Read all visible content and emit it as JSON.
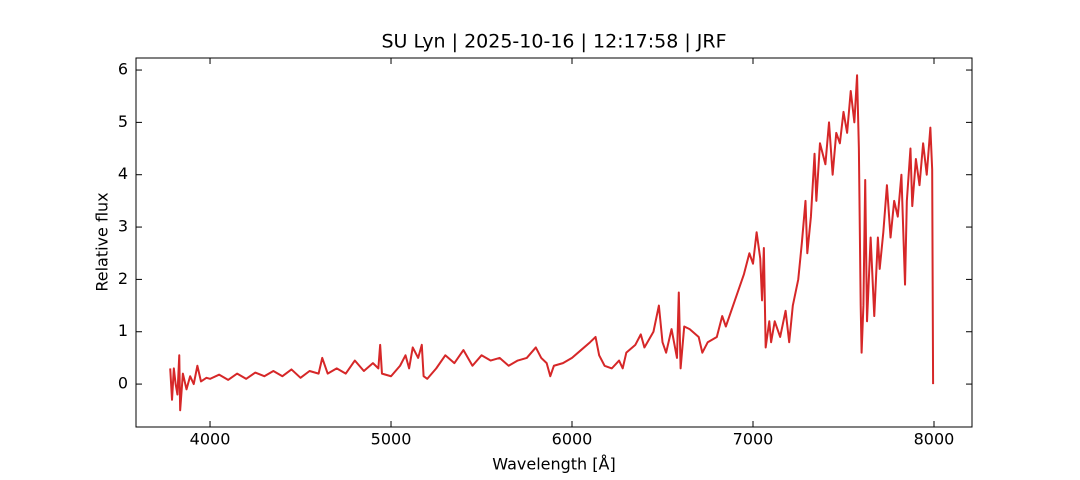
{
  "chart_data": {
    "type": "line",
    "title": "SU Lyn | 2025-10-16 | 12:17:58 | JRF",
    "x_label": "Wavelength [Å]",
    "y_label": "Relative flux",
    "xlim": [
      3591,
      8210
    ],
    "ylim": [
      -0.82,
      6.23
    ],
    "xticks": [
      4000,
      5000,
      6000,
      7000,
      8000
    ],
    "yticks": [
      0,
      1,
      2,
      3,
      4,
      5,
      6
    ],
    "grid": false,
    "series": [
      {
        "name": "SU Lyn",
        "color": "#d62728",
        "x": [
          3780,
          3790,
          3800,
          3810,
          3820,
          3830,
          3835,
          3850,
          3870,
          3890,
          3910,
          3930,
          3950,
          3980,
          4000,
          4050,
          4100,
          4150,
          4200,
          4250,
          4300,
          4350,
          4400,
          4450,
          4500,
          4550,
          4600,
          4620,
          4650,
          4700,
          4750,
          4800,
          4850,
          4900,
          4930,
          4940,
          4950,
          5000,
          5050,
          5080,
          5100,
          5120,
          5150,
          5170,
          5180,
          5200,
          5250,
          5300,
          5350,
          5400,
          5450,
          5500,
          5550,
          5600,
          5650,
          5700,
          5750,
          5800,
          5830,
          5860,
          5880,
          5900,
          5950,
          6000,
          6050,
          6100,
          6130,
          6150,
          6180,
          6220,
          6260,
          6280,
          6300,
          6350,
          6380,
          6400,
          6450,
          6480,
          6500,
          6520,
          6550,
          6580,
          6590,
          6600,
          6620,
          6650,
          6700,
          6720,
          6750,
          6800,
          6830,
          6850,
          6900,
          6950,
          6980,
          7000,
          7020,
          7040,
          7050,
          7060,
          7070,
          7090,
          7100,
          7120,
          7150,
          7180,
          7200,
          7220,
          7250,
          7270,
          7290,
          7300,
          7320,
          7340,
          7350,
          7370,
          7400,
          7420,
          7440,
          7460,
          7480,
          7500,
          7520,
          7540,
          7560,
          7575,
          7585,
          7595,
          7600,
          7610,
          7620,
          7630,
          7650,
          7670,
          7690,
          7700,
          7720,
          7740,
          7760,
          7780,
          7800,
          7820,
          7840,
          7850,
          7870,
          7880,
          7900,
          7920,
          7940,
          7960,
          7980,
          7990,
          7995
        ],
        "values": [
          0.3,
          -0.3,
          0.3,
          0.0,
          -0.2,
          0.55,
          -0.5,
          0.2,
          -0.1,
          0.15,
          0.0,
          0.35,
          0.05,
          0.12,
          0.1,
          0.18,
          0.08,
          0.2,
          0.1,
          0.22,
          0.15,
          0.25,
          0.15,
          0.28,
          0.12,
          0.25,
          0.2,
          0.5,
          0.2,
          0.3,
          0.2,
          0.45,
          0.25,
          0.4,
          0.3,
          0.75,
          0.2,
          0.15,
          0.35,
          0.55,
          0.3,
          0.7,
          0.5,
          0.75,
          0.15,
          0.1,
          0.3,
          0.55,
          0.4,
          0.65,
          0.35,
          0.55,
          0.45,
          0.5,
          0.35,
          0.45,
          0.5,
          0.7,
          0.5,
          0.4,
          0.15,
          0.35,
          0.4,
          0.5,
          0.65,
          0.8,
          0.9,
          0.55,
          0.35,
          0.3,
          0.45,
          0.3,
          0.6,
          0.75,
          0.95,
          0.7,
          1.0,
          1.5,
          0.8,
          0.6,
          1.05,
          0.5,
          1.75,
          0.3,
          1.1,
          1.05,
          0.9,
          0.6,
          0.8,
          0.9,
          1.3,
          1.1,
          1.6,
          2.1,
          2.5,
          2.3,
          2.9,
          2.4,
          1.6,
          2.6,
          0.7,
          1.2,
          0.8,
          1.2,
          0.9,
          1.4,
          0.8,
          1.5,
          2.0,
          2.7,
          3.5,
          2.5,
          3.2,
          4.4,
          3.5,
          4.6,
          4.2,
          5.0,
          4.0,
          4.8,
          4.6,
          5.2,
          4.8,
          5.6,
          5.0,
          5.9,
          4.5,
          1.5,
          0.6,
          1.5,
          3.9,
          1.2,
          2.8,
          1.3,
          2.8,
          2.2,
          2.9,
          3.8,
          2.8,
          3.5,
          3.2,
          4.0,
          1.9,
          3.5,
          4.5,
          3.4,
          4.3,
          3.8,
          4.6,
          4.0,
          4.9,
          4.1,
          0.0
        ]
      }
    ]
  }
}
